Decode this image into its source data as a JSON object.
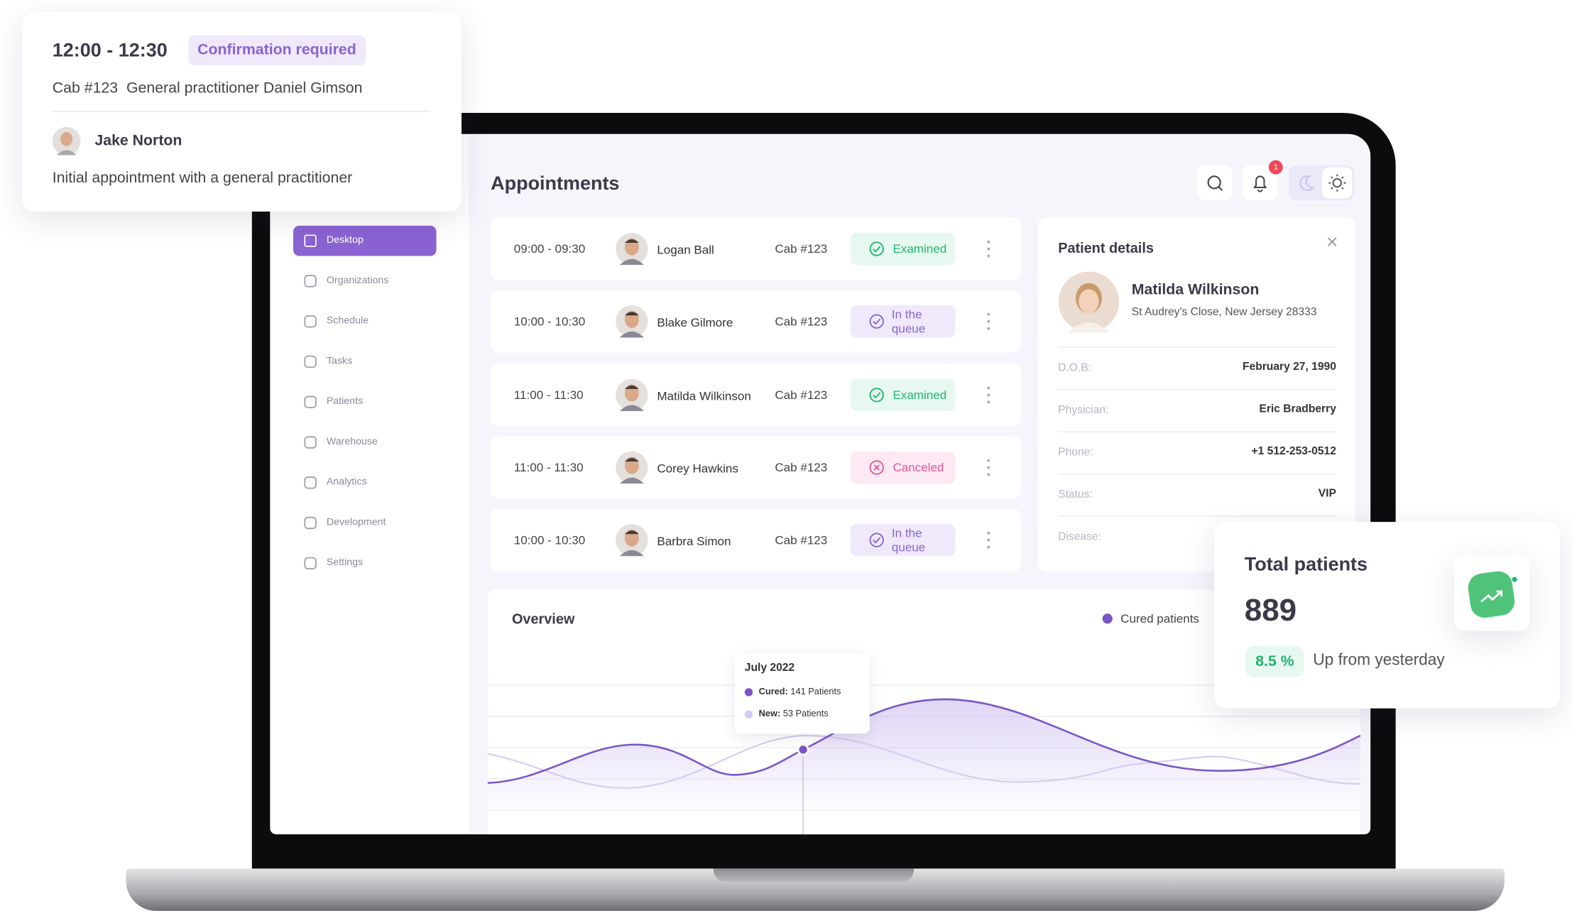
{
  "popup": {
    "time": "12:00 - 12:30",
    "badge": "Confirmation required",
    "location": "Cab #123  General practitioner Daniel Gimson",
    "patient": "Jake Norton",
    "description": "Initial appointment with a general practitioner"
  },
  "sidebar": {
    "items": [
      "Desktop",
      "Organizations",
      "Schedule",
      "Tasks",
      "Patients",
      "Warehouse",
      "Analytics",
      "Development",
      "Settings"
    ]
  },
  "header": {
    "title": "Appointments",
    "notification_count": 1
  },
  "appointments": [
    {
      "time": "09:00 - 09:30",
      "patient": "Logan Ball",
      "cabinet": "Cab #123",
      "status": "Examined",
      "status_color": "#22b573",
      "status_bg": "#e6f8ef",
      "icon": "check"
    },
    {
      "time": "10:00 - 10:30",
      "patient": "Blake Gilmore",
      "cabinet": "Cab #123",
      "status": "In the queue",
      "status_color": "#8a63d2",
      "status_bg": "#efe9fb",
      "icon": "check"
    },
    {
      "time": "11:00 - 11:30",
      "patient": "Matilda Wilkinson",
      "cabinet": "Cab #123",
      "status": "Examined",
      "status_color": "#22b573",
      "status_bg": "#e6f8ef",
      "icon": "check"
    },
    {
      "time": "11:00 - 11:30",
      "patient": "Corey Hawkins",
      "cabinet": "Cab #123",
      "status": "Canceled",
      "status_color": "#e0569b",
      "status_bg": "#fde9f3",
      "icon": "cross"
    },
    {
      "time": "10:00 - 10:30",
      "patient": "Barbra Simon",
      "cabinet": "Cab #123",
      "status": "In the queue",
      "status_color": "#8a63d2",
      "status_bg": "#efe9fb",
      "icon": "check"
    }
  ],
  "patient_details": {
    "title": "Patient details",
    "name": "Matilda Wilkinson",
    "address": "St Audrey's Close, New Jersey 28333",
    "fields": [
      {
        "label": "D.O.B:",
        "value": "February 27, 1990"
      },
      {
        "label": "Physician:",
        "value": "Eric Bradberry"
      },
      {
        "label": "Phone:",
        "value": "+1 512-253-0512"
      },
      {
        "label": "Status:",
        "value": "VIP"
      },
      {
        "label": "Disease:"
      }
    ]
  },
  "overview": {
    "title": "Overview",
    "legend": "Cured patients",
    "tooltip": {
      "title": "July 2022",
      "cured_label": "Cured:",
      "cured_value": "141 Patients",
      "new_label": "New:",
      "new_value": "53 Patients"
    }
  },
  "total_patients": {
    "title": "Total patients",
    "value": 889,
    "change": "8.5 %",
    "change_note": "Up from yesterday"
  }
}
